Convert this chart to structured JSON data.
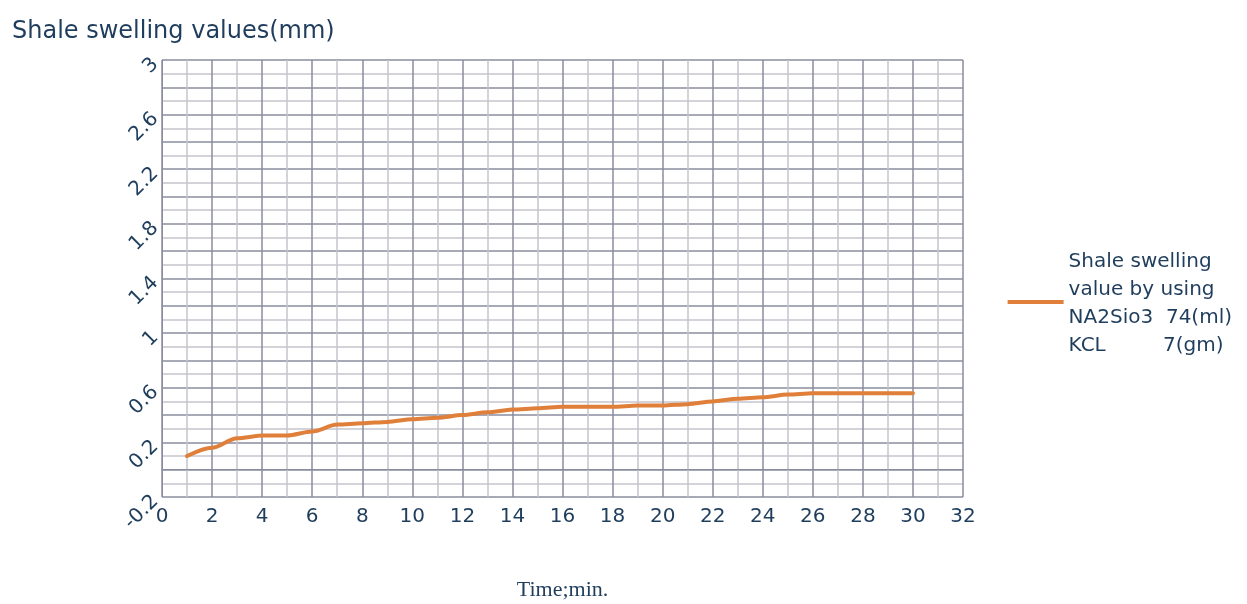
{
  "chart_data": {
    "type": "line",
    "xlabel": "Time;min.",
    "ylabel": "Shale swelling values(mm)",
    "x": [
      1,
      2,
      3,
      4,
      5,
      6,
      7,
      8,
      9,
      10,
      11,
      12,
      13,
      14,
      15,
      16,
      17,
      18,
      19,
      20,
      21,
      22,
      23,
      24,
      25,
      26,
      27,
      28,
      29,
      30
    ],
    "series": [
      {
        "name": "Shale swelling\nvalue by using\nNA2Sio3  74(ml)\nKCL         7(gm)",
        "color": "#e07f3a",
        "values": [
          0.1,
          0.16,
          0.23,
          0.25,
          0.25,
          0.28,
          0.33,
          0.34,
          0.35,
          0.37,
          0.38,
          0.4,
          0.42,
          0.44,
          0.45,
          0.46,
          0.46,
          0.46,
          0.47,
          0.47,
          0.48,
          0.5,
          0.52,
          0.53,
          0.55,
          0.56,
          0.56,
          0.56,
          0.56,
          0.56
        ]
      }
    ],
    "xlim": [
      0,
      32
    ],
    "xticks": [
      0,
      2,
      4,
      6,
      8,
      10,
      12,
      14,
      16,
      18,
      20,
      22,
      24,
      26,
      28,
      30,
      32
    ],
    "ylim": [
      -0.2,
      3
    ],
    "yticks": [
      -0.2,
      0.2,
      0.6,
      1,
      1.4,
      1.8,
      2.2,
      2.6,
      3
    ],
    "grid": true,
    "legend": "right",
    "marker": "none",
    "line_style": "solid"
  }
}
